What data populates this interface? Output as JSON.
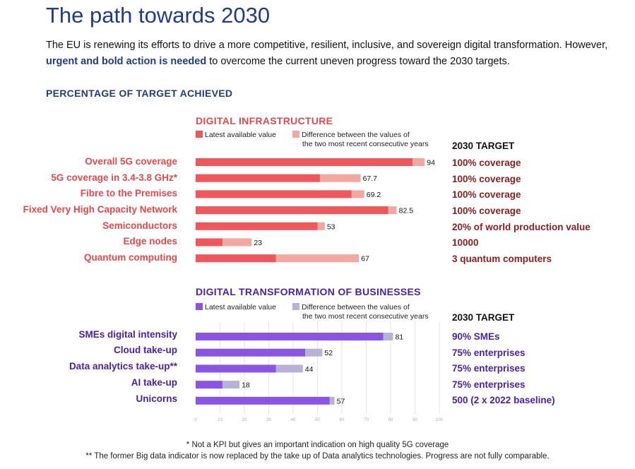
{
  "page": {
    "title": "The path towards 2030",
    "intro_part1": "The EU is renewing its efforts to drive a more competitive, resilient, inclusive, and sovereign digital transformation. However, ",
    "intro_highlight": "urgent and bold action is needed",
    "intro_part2": " to overcome the current uneven progress toward the 2030 targets.",
    "section_heading": "PERCENTAGE OF TARGET ACHIEVED",
    "footnote1": "* Not a KPI but gives an important indication on high quality 5G coverage",
    "footnote2": "** The former Big data indicator is now replaced by the take up of Data analytics technologies. Progress are not fully comparable."
  },
  "chart_data": [
    {
      "type": "bar",
      "orientation": "horizontal",
      "stacked": true,
      "title": "DIGITAL INFRASTRUCTURE",
      "legend": [
        "Latest available value",
        "Difference between the values of the two most recent consecutive years"
      ],
      "legend_latest": "Latest available value",
      "legend_diff_1": "Difference between the values of",
      "legend_diff_2": "the two most recent consecutive years",
      "target_header": "2030 TARGET",
      "colors": {
        "latest": "#f0565b",
        "difference": "#f4a7a0",
        "label": "#e8474c",
        "target": "#8c1d1d",
        "title": "#e8474c"
      },
      "categories": [
        "Overall 5G coverage",
        "5G coverage in 3.4-3.8 GHz*",
        "Fibre to the Premises",
        "Fixed Very High Capacity Network",
        "Semiconductors",
        "Edge nodes",
        "Quantum computing"
      ],
      "series": [
        {
          "name": "Latest available value",
          "values": [
            89,
            51,
            64,
            79,
            50,
            11,
            33
          ]
        },
        {
          "name": "Difference between the values of the two most recent consecutive years",
          "values": [
            5,
            16.7,
            5.2,
            3.5,
            3,
            12,
            34
          ]
        }
      ],
      "totals": [
        94,
        67.7,
        69.2,
        82.5,
        53,
        23,
        67
      ],
      "value_labels": [
        "94",
        "67.7",
        "69.2",
        "82.5",
        "53",
        "23",
        "67"
      ],
      "targets": [
        "100% coverage",
        "100% coverage",
        "100% coverage",
        "100% coverage",
        "20% of world production value",
        "10000",
        "3 quantum computers"
      ],
      "xlim": [
        0,
        100
      ]
    },
    {
      "type": "bar",
      "orientation": "horizontal",
      "stacked": true,
      "title": "DIGITAL TRANSFORMATION OF BUSINESSES",
      "legend": [
        "Latest available value",
        "Difference between the values of the two most recent consecutive years"
      ],
      "legend_latest": "Latest available value",
      "legend_diff_1": "Difference between the values of",
      "legend_diff_2": "the two most recent consecutive years",
      "target_header": "2030 TARGET",
      "colors": {
        "latest": "#8a55e6",
        "difference": "#b9b1d8",
        "label": "#4a1fa8",
        "target": "#4a1fa8",
        "title": "#4a1fa8"
      },
      "categories": [
        "SMEs digital intensity",
        "Cloud take-up",
        "Data analytics take-up**",
        "AI take-up",
        "Unicorns"
      ],
      "series": [
        {
          "name": "Latest available value",
          "values": [
            77,
            45,
            33,
            11,
            55
          ]
        },
        {
          "name": "Difference between the values of the two most recent consecutive years",
          "values": [
            4,
            7,
            11,
            7,
            2
          ]
        }
      ],
      "totals": [
        81,
        52,
        44,
        18,
        57
      ],
      "value_labels": [
        "81",
        "52",
        "44",
        "18",
        "57"
      ],
      "targets": [
        "90% SMEs",
        "75% enterprises",
        "75% enterprises",
        "75% enterprises",
        "500 (2 x 2022 baseline)"
      ],
      "xlim": [
        0,
        100
      ],
      "xticks": [
        "0",
        "10",
        "20",
        "30",
        "40",
        "50",
        "60",
        "70",
        "80",
        "90",
        "100"
      ]
    }
  ]
}
